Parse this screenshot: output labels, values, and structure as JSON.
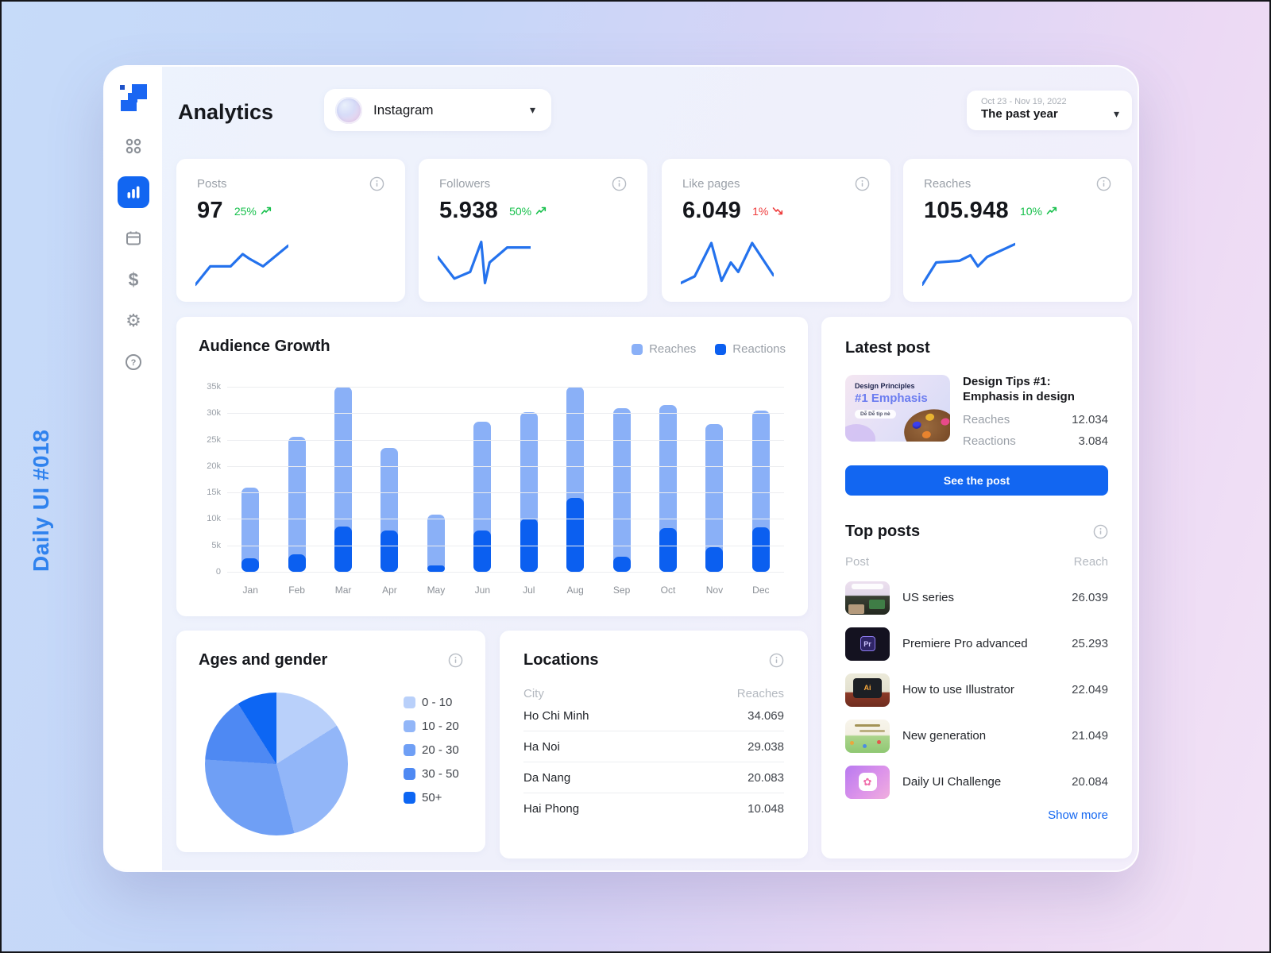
{
  "watermark": "Daily UI #018",
  "colors": {
    "accent": "#1266f1",
    "spark": "#2472ed",
    "positive": "#16c04b",
    "negative": "#ee3b3b"
  },
  "sidebar": {
    "items": [
      {
        "icon": "apps-grid-icon",
        "active": false
      },
      {
        "icon": "bar-chart-icon",
        "active": true
      },
      {
        "icon": "calendar-icon",
        "active": false
      },
      {
        "icon": "dollar-icon",
        "active": false
      },
      {
        "icon": "settings-icon",
        "active": false
      },
      {
        "icon": "help-icon",
        "active": false
      }
    ],
    "dollar_glyph": "$",
    "gear_glyph": "⚙"
  },
  "header": {
    "title": "Analytics",
    "account_selector": {
      "name": "Instagram"
    },
    "date_selector": {
      "range": "Oct 23 - Nov 19, 2022",
      "label": "The past year"
    }
  },
  "stats": [
    {
      "label": "Posts",
      "value": "97",
      "change": "25%",
      "direction": "up",
      "spark": [
        [
          0,
          95
        ],
        [
          16,
          62
        ],
        [
          38,
          62
        ],
        [
          51,
          40
        ],
        [
          58,
          48
        ],
        [
          73,
          62
        ],
        [
          100,
          25
        ]
      ]
    },
    {
      "label": "Followers",
      "value": "5.938",
      "change": "50%",
      "direction": "up",
      "spark": [
        [
          0,
          45
        ],
        [
          18,
          84
        ],
        [
          35,
          72
        ],
        [
          47,
          18
        ],
        [
          51,
          92
        ],
        [
          56,
          55
        ],
        [
          75,
          28
        ],
        [
          100,
          28
        ]
      ]
    },
    {
      "label": "Like pages",
      "value": "6.049",
      "change": "1%",
      "direction": "down",
      "spark": [
        [
          0,
          92
        ],
        [
          15,
          80
        ],
        [
          33,
          20
        ],
        [
          44,
          88
        ],
        [
          54,
          55
        ],
        [
          62,
          72
        ],
        [
          77,
          20
        ],
        [
          100,
          78
        ]
      ]
    },
    {
      "label": "Reaches",
      "value": "105.948",
      "change": "10%",
      "direction": "up",
      "spark": [
        [
          0,
          95
        ],
        [
          15,
          55
        ],
        [
          40,
          52
        ],
        [
          52,
          42
        ],
        [
          60,
          62
        ],
        [
          70,
          45
        ],
        [
          100,
          22
        ]
      ]
    }
  ],
  "chart_data": [
    {
      "id": "audience_growth",
      "type": "bar",
      "stacked_overlay": true,
      "title": "Audience Growth",
      "categories": [
        "Jan",
        "Feb",
        "Mar",
        "Apr",
        "May",
        "Jun",
        "Jul",
        "Aug",
        "Sep",
        "Oct",
        "Nov",
        "Dec"
      ],
      "series": [
        {
          "name": "Reaches",
          "color": "#8ab0f7",
          "values": [
            16,
            25.5,
            35,
            23.5,
            10.8,
            28.4,
            30.2,
            35,
            31,
            31.5,
            28,
            30.5
          ]
        },
        {
          "name": "Reactions",
          "color": "#0b5ff0",
          "values": [
            2.5,
            3.3,
            8.5,
            7.8,
            1.2,
            7.8,
            10,
            14,
            2.8,
            8.2,
            4.6,
            8.4
          ]
        }
      ],
      "unit": "k",
      "ylim": [
        0,
        35
      ],
      "yticks": [
        "35k",
        "30k",
        "25k",
        "20k",
        "15k",
        "10k",
        "5k",
        "0"
      ],
      "grid": true,
      "legend_position": "top-right"
    },
    {
      "id": "ages_gender",
      "type": "pie",
      "title": "Ages and gender",
      "labels": [
        "0 - 10",
        "10 - 20",
        "20 - 30",
        "30 - 50",
        "50+"
      ],
      "values": [
        16,
        30,
        30,
        15,
        9
      ],
      "colors": [
        "#b9d0fa",
        "#92b6f8",
        "#6f9ff5",
        "#4e89f3",
        "#0d66f3"
      ],
      "legend_position": "right"
    }
  ],
  "latest_post": {
    "title": "Latest post",
    "thumbnail": {
      "heading": "Design Principles",
      "subheading": "#1 Emphasis",
      "badge": "Dễ Dễ tip nè"
    },
    "post_title": "Design Tips #1: Emphasis in design",
    "metrics": [
      {
        "label": "Reaches",
        "value": "12.034"
      },
      {
        "label": "Reactions",
        "value": "3.084"
      }
    ],
    "button_label": "See the post"
  },
  "top_posts": {
    "title": "Top posts",
    "columns": {
      "post": "Post",
      "reach": "Reach"
    },
    "rows": [
      {
        "title": "US series",
        "reach": "26.039"
      },
      {
        "title": "Premiere Pro advanced",
        "reach": "25.293"
      },
      {
        "title": "How to use Illustrator",
        "reach": "22.049"
      },
      {
        "title": "New generation",
        "reach": "21.049"
      },
      {
        "title": "Daily UI Challenge",
        "reach": "20.084"
      }
    ],
    "show_more_label": "Show more"
  },
  "locations": {
    "title": "Locations",
    "columns": {
      "city": "City",
      "reaches": "Reaches"
    },
    "rows": [
      {
        "city": "Ho Chi Minh",
        "reaches": "34.069"
      },
      {
        "city": "Ha Noi",
        "reaches": "29.038"
      },
      {
        "city": "Da Nang",
        "reaches": "20.083"
      },
      {
        "city": "Hai Phong",
        "reaches": "10.048"
      }
    ]
  }
}
